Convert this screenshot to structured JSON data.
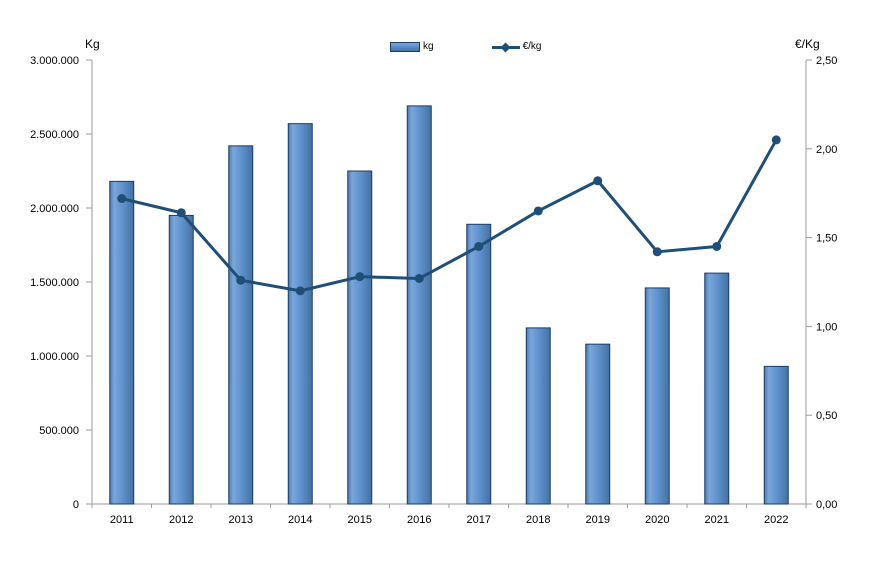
{
  "chart": {
    "left_axis_title": "Kg",
    "right_axis_title": "€/Kg",
    "legend": {
      "bar_label": "kg",
      "line_label": "€/kg"
    },
    "colors": {
      "bar_fill_light": "#7aa6da",
      "bar_fill_mid": "#5e90cc",
      "bar_fill_dark": "#44719f",
      "bar_fill_edge": "#4a79ae",
      "bar_border": "#1d3d66",
      "line": "#1f4e79",
      "axis": "#9b9b9b",
      "text": "#000000"
    },
    "chart_data": {
      "type": "bar",
      "secondary_type": "line",
      "title": "",
      "xlabel": "",
      "grid": false,
      "legend_position": "top-center",
      "categories": [
        "2011",
        "2012",
        "2013",
        "2014",
        "2015",
        "2016",
        "2017",
        "2018",
        "2019",
        "2020",
        "2021",
        "2022"
      ],
      "series": [
        {
          "name": "kg",
          "type": "bar",
          "axis": "left",
          "values": [
            2180000,
            1950000,
            2420000,
            2570000,
            2250000,
            2690000,
            1890000,
            1190000,
            1080000,
            1460000,
            1560000,
            930000
          ]
        },
        {
          "name": "€/kg",
          "type": "line",
          "axis": "right",
          "values": [
            1.72,
            1.64,
            1.26,
            1.2,
            1.28,
            1.27,
            1.45,
            1.65,
            1.82,
            1.42,
            1.45,
            2.05
          ]
        }
      ],
      "left_axis": {
        "label": "Kg",
        "min": 0,
        "max": 3000000,
        "tick_values": [
          0,
          500000,
          1000000,
          1500000,
          2000000,
          2500000,
          3000000
        ],
        "tick_labels": [
          "0",
          "500.000",
          "1.000.000",
          "1.500.000",
          "2.000.000",
          "2.500.000",
          "3.000.000"
        ]
      },
      "right_axis": {
        "label": "€/Kg",
        "min": 0,
        "max": 2.5,
        "tick_values": [
          0,
          0.5,
          1.0,
          1.5,
          2.0,
          2.5
        ],
        "tick_labels": [
          "0,00",
          "0,50",
          "1,00",
          "1,50",
          "2,00",
          "2,50"
        ]
      }
    }
  }
}
